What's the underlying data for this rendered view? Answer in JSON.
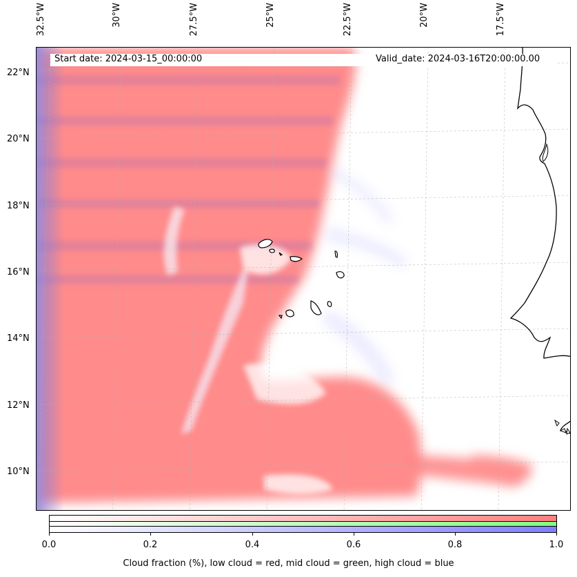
{
  "header": {
    "start_date": "Start date: 2024-03-15_00:00:00",
    "valid_date": "Valid_date: 2024-03-16T20:00:00.00"
  },
  "axes": {
    "longitude_labels": [
      "32.5°W",
      "30°W",
      "27.5°W",
      "25°W",
      "22.5°W",
      "20°W",
      "17.5°W"
    ],
    "latitude_labels": [
      "22°N",
      "20°N",
      "18°N",
      "16°N",
      "14°N",
      "12°N",
      "10°N"
    ]
  },
  "colorbar": {
    "ticks": [
      "0.0",
      "0.2",
      "0.4",
      "0.6",
      "0.8",
      "1.0"
    ],
    "caption": "Cloud fraction (%), low cloud = red, mid cloud = green, high cloud = blue",
    "colors": {
      "low": "#ff7f7f",
      "mid": "#7fff7f",
      "high": "#7f7fff"
    }
  }
}
